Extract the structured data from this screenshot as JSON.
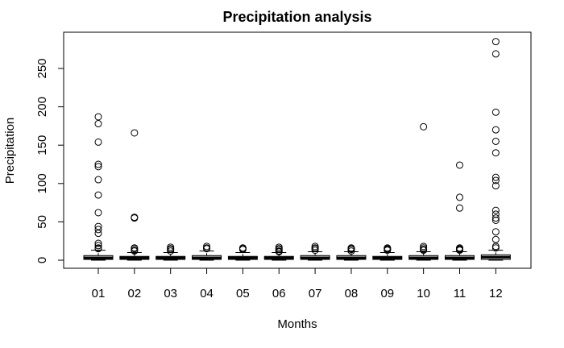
{
  "chart_data": {
    "type": "boxplot",
    "title": "Precipitation analysis",
    "xlabel": "Months",
    "ylabel": "Precipitation",
    "categories": [
      "01",
      "02",
      "03",
      "04",
      "05",
      "06",
      "07",
      "08",
      "09",
      "10",
      "11",
      "12"
    ],
    "y_ticks": [
      0,
      50,
      100,
      150,
      200,
      250
    ],
    "ylim": [
      -10,
      295
    ],
    "boxes": [
      {
        "category": "01",
        "min": 0,
        "q1": 1,
        "median": 3,
        "q3": 6,
        "max": 13,
        "outliers": [
          187,
          178,
          154,
          125,
          122,
          105,
          85,
          62,
          44,
          40,
          35,
          22,
          19,
          16,
          15
        ]
      },
      {
        "category": "02",
        "min": 0,
        "q1": 1,
        "median": 3,
        "q3": 5,
        "max": 10,
        "outliers": [
          166,
          56,
          55,
          16,
          15,
          13,
          12
        ]
      },
      {
        "category": "03",
        "min": 0,
        "q1": 1,
        "median": 3,
        "q3": 5,
        "max": 10,
        "outliers": [
          17,
          15,
          14,
          12
        ]
      },
      {
        "category": "04",
        "min": 0,
        "q1": 1,
        "median": 3,
        "q3": 6,
        "max": 12,
        "outliers": [
          18,
          16,
          15
        ]
      },
      {
        "category": "05",
        "min": 0,
        "q1": 1,
        "median": 3,
        "q3": 5,
        "max": 10,
        "outliers": [
          16,
          15,
          14
        ]
      },
      {
        "category": "06",
        "min": 0,
        "q1": 1,
        "median": 3,
        "q3": 5,
        "max": 10,
        "outliers": [
          17,
          15,
          14,
          12,
          11
        ]
      },
      {
        "category": "07",
        "min": 0,
        "q1": 1,
        "median": 3,
        "q3": 6,
        "max": 11,
        "outliers": [
          18,
          16,
          15,
          13
        ]
      },
      {
        "category": "08",
        "min": 0,
        "q1": 1,
        "median": 3,
        "q3": 6,
        "max": 11,
        "outliers": [
          16,
          15,
          14,
          12
        ]
      },
      {
        "category": "09",
        "min": 0,
        "q1": 1,
        "median": 3,
        "q3": 5,
        "max": 10,
        "outliers": [
          16,
          15,
          14,
          13
        ]
      },
      {
        "category": "10",
        "min": 0,
        "q1": 1,
        "median": 3,
        "q3": 6,
        "max": 11,
        "outliers": [
          174,
          18,
          16,
          14,
          13
        ]
      },
      {
        "category": "11",
        "min": 0,
        "q1": 1,
        "median": 3,
        "q3": 6,
        "max": 11,
        "outliers": [
          124,
          82,
          68,
          16,
          15,
          14,
          13
        ]
      },
      {
        "category": "12",
        "min": 0,
        "q1": 1,
        "median": 4,
        "q3": 7,
        "max": 13,
        "outliers": [
          285,
          269,
          193,
          170,
          155,
          140,
          108,
          104,
          97,
          65,
          60,
          55,
          52,
          37,
          27,
          18,
          16
        ]
      }
    ],
    "grid": false,
    "legend": "none"
  }
}
